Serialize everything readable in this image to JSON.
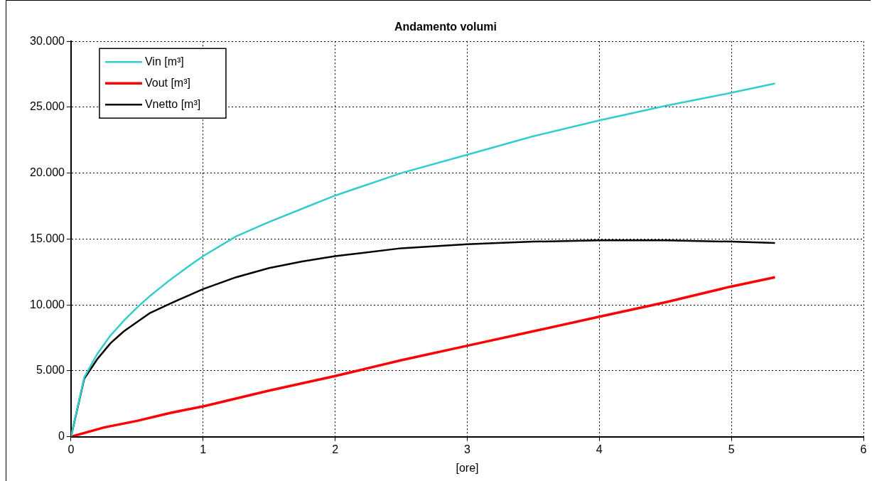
{
  "chart_data": {
    "type": "line",
    "title": "Andamento volumi",
    "xlabel": "[ore]",
    "xlim": [
      0,
      6
    ],
    "xticks": [
      0,
      1,
      2,
      3,
      4,
      5,
      6
    ],
    "ylim": [
      0,
      30000
    ],
    "yticks": [
      {
        "value": 0,
        "label": "0"
      },
      {
        "value": 5000,
        "label": "5.000"
      },
      {
        "value": 10000,
        "label": "10.000"
      },
      {
        "value": 15000,
        "label": "15.000"
      },
      {
        "value": 20000,
        "label": "20.000"
      },
      {
        "value": 25000,
        "label": "25.000"
      },
      {
        "value": 30000,
        "label": "30.000"
      }
    ],
    "grid": true,
    "legend": "top left",
    "marker": "none",
    "line_style": "solid",
    "series": [
      {
        "name": "Vin [m³]",
        "color": "#33cccc",
        "x": [
          0,
          0.1,
          0.2,
          0.3,
          0.4,
          0.5,
          0.6,
          0.75,
          0.9,
          1,
          1.25,
          1.5,
          1.75,
          2,
          2.5,
          3,
          3.5,
          4,
          4.5,
          5,
          5.33
        ],
        "values": [
          0,
          4500,
          6300,
          7700,
          8800,
          9800,
          10700,
          11900,
          13000,
          13700,
          15200,
          16300,
          17300,
          18300,
          20000,
          21400,
          22800,
          24000,
          25100,
          26100,
          26800
        ]
      },
      {
        "name": "Vout [m³]",
        "color": "#ff0000",
        "x": [
          0,
          0.25,
          0.5,
          0.75,
          1,
          1.5,
          2,
          2.5,
          3,
          3.5,
          4,
          4.5,
          5,
          5.33
        ],
        "values": [
          0,
          700,
          1200,
          1800,
          2300,
          3500,
          4600,
          5800,
          6900,
          8000,
          9100,
          10200,
          11400,
          12100
        ]
      },
      {
        "name": "Vnetto [m³]",
        "color": "#000000",
        "x": [
          0,
          0.1,
          0.2,
          0.3,
          0.4,
          0.5,
          0.6,
          0.75,
          1,
          1.25,
          1.5,
          1.75,
          2,
          2.5,
          3,
          3.5,
          4,
          4.5,
          5,
          5.33
        ],
        "values": [
          0,
          4400,
          5900,
          7100,
          8000,
          8700,
          9400,
          10100,
          11200,
          12100,
          12800,
          13300,
          13700,
          14300,
          14600,
          14800,
          14900,
          14900,
          14800,
          14700
        ]
      }
    ]
  }
}
